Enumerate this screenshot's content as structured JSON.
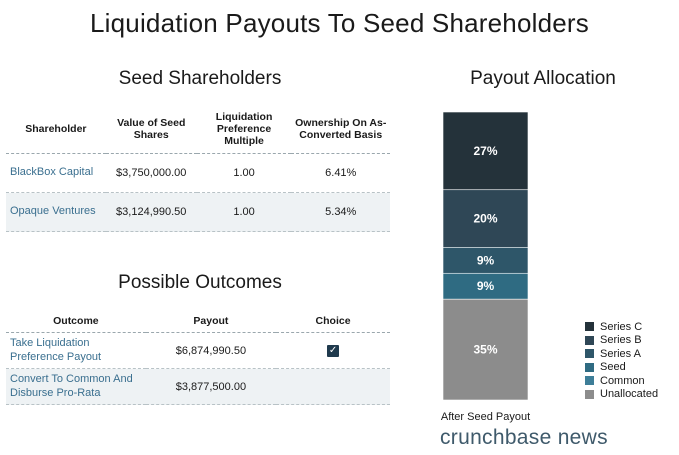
{
  "title": "Liquidation Payouts To Seed Shareholders",
  "seed_table": {
    "title": "Seed Shareholders",
    "headers": [
      "Shareholder",
      "Value of Seed Shares",
      "Liquidation Preference Multiple",
      "Ownership On As-Converted Basis"
    ],
    "rows": [
      {
        "name": "BlackBox Capital",
        "value": "$3,750,000.00",
        "multiple": "1.00",
        "ownership": "6.41%"
      },
      {
        "name": "Opaque Ventures",
        "value": "$3,124,990.50",
        "multiple": "1.00",
        "ownership": "5.34%"
      }
    ]
  },
  "outcomes_table": {
    "title": "Possible Outcomes",
    "headers": [
      "Outcome",
      "Payout",
      "Choice"
    ],
    "rows": [
      {
        "outcome": "Take Liquidation Preference Payout",
        "payout": "$6,874,990.50",
        "choice": true
      },
      {
        "outcome": "Convert To Common And Disburse Pro-Rata",
        "payout": "$3,877,500.00",
        "choice": false
      }
    ]
  },
  "chart_data": {
    "type": "bar",
    "title": "Payout Allocation",
    "categories": [
      "After Seed Payout"
    ],
    "series": [
      {
        "name": "Series C",
        "values": [
          27
        ],
        "color": "#24323a",
        "label": "27%"
      },
      {
        "name": "Series B",
        "values": [
          20
        ],
        "color": "#2f4756",
        "label": "20%"
      },
      {
        "name": "Series A",
        "values": [
          9
        ],
        "color": "#2e5669",
        "label": "9%"
      },
      {
        "name": "Seed",
        "values": [
          9
        ],
        "color": "#2f6b82",
        "label": "9%"
      },
      {
        "name": "Common",
        "values": [
          0
        ],
        "color": "#3d7e98",
        "label": ""
      },
      {
        "name": "Unallocated",
        "values": [
          35
        ],
        "color": "#8c8c8c",
        "label": "35%"
      }
    ],
    "stacked": true,
    "ylim": [
      0,
      100
    ],
    "legend_position": "bottom-right"
  },
  "brand": "crunchbase news"
}
